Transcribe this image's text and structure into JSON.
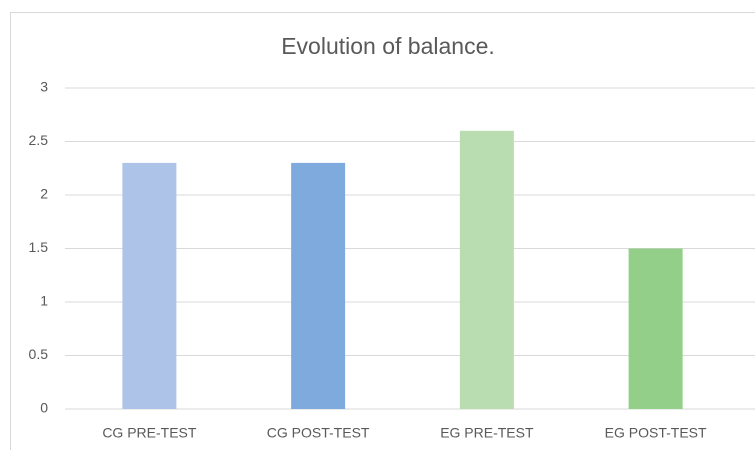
{
  "chart_data": {
    "type": "bar",
    "title": "Evolution of balance.",
    "categories": [
      "CG PRE-TEST",
      "CG POST-TEST",
      "EG PRE-TEST",
      "EG POST-TEST"
    ],
    "values": [
      2.3,
      2.3,
      2.6,
      1.5
    ],
    "colors": [
      "#aec3e8",
      "#7eaade",
      "#b9ddb1",
      "#93cf88"
    ],
    "ylim": [
      0,
      3
    ],
    "yticks": [
      0,
      0.5,
      1,
      1.5,
      2,
      2.5,
      3
    ],
    "grid": true
  }
}
